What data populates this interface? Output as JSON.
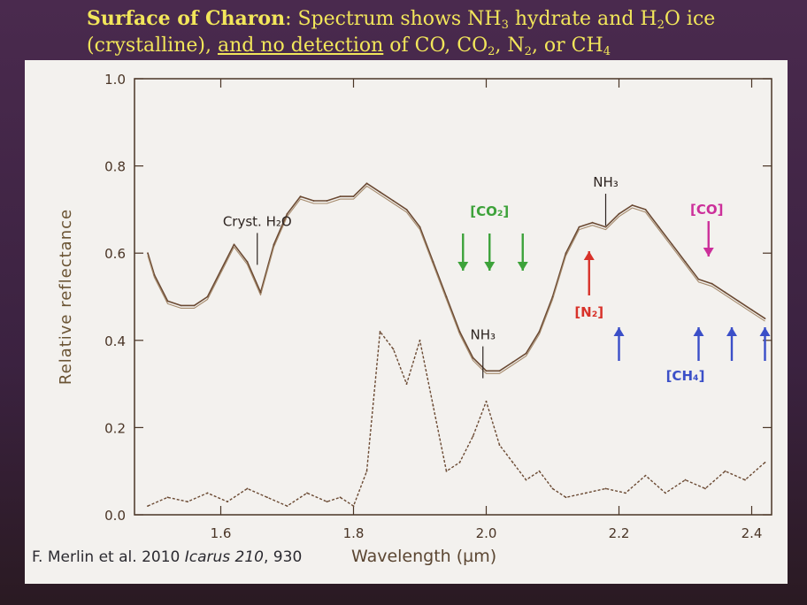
{
  "slide": {
    "title_bold": "Surface of Charon",
    "title_rest_1": ": Spectrum shows NH",
    "title_sub_1": "3",
    "title_rest_2": " hydrate and H",
    "title_sub_2": "2",
    "title_rest_3": "O ice",
    "title_line2_a": "(crystalline), ",
    "title_line2_u": "and no detection",
    "title_line2_b": " of CO, CO",
    "title_sub_3": "2",
    "title_line2_c": ", N",
    "title_sub_4": "2",
    "title_line2_d": ", or CH",
    "title_sub_5": "4",
    "credit_a": "F. Merlin et al. 2010 ",
    "credit_i": "Icarus 210",
    "credit_b": ", 930"
  },
  "colors": {
    "spectrum": "#6b4a33",
    "co2_arrows": "#3da23a",
    "n2_arrow": "#d8322a",
    "co_arrow": "#cc2f9a",
    "ch4_arrows": "#3b4fc8",
    "axis": "#4a3526"
  },
  "chart_data": {
    "type": "line",
    "xlabel": "Wavelength (µm)",
    "ylabel": "Relative reflectance",
    "xlim": [
      1.47,
      2.43
    ],
    "ylim": [
      0.0,
      1.0
    ],
    "xticks": [
      "1.6",
      "1.8",
      "2.0",
      "2.2",
      "2.4"
    ],
    "yticks": [
      "0.0",
      "0.2",
      "0.4",
      "0.6",
      "0.8",
      "1.0"
    ],
    "series": [
      {
        "style": "solid",
        "x": [
          1.49,
          1.5,
          1.52,
          1.54,
          1.56,
          1.58,
          1.6,
          1.62,
          1.64,
          1.66,
          1.68,
          1.7,
          1.72,
          1.74,
          1.76,
          1.78,
          1.8,
          1.82,
          1.84,
          1.86,
          1.88,
          1.9,
          1.92,
          1.94,
          1.96,
          1.98,
          2.0,
          2.02,
          2.04,
          2.06,
          2.08,
          2.1,
          2.12,
          2.14,
          2.16,
          2.18,
          2.2,
          2.22,
          2.24,
          2.26,
          2.28,
          2.3,
          2.32,
          2.34,
          2.36,
          2.38,
          2.4,
          2.42
        ],
        "y": [
          0.6,
          0.55,
          0.49,
          0.48,
          0.48,
          0.5,
          0.56,
          0.62,
          0.58,
          0.51,
          0.62,
          0.69,
          0.73,
          0.72,
          0.72,
          0.73,
          0.73,
          0.76,
          0.74,
          0.72,
          0.7,
          0.66,
          0.58,
          0.5,
          0.42,
          0.36,
          0.33,
          0.33,
          0.35,
          0.37,
          0.42,
          0.5,
          0.6,
          0.66,
          0.67,
          0.66,
          0.69,
          0.71,
          0.7,
          0.66,
          0.62,
          0.58,
          0.54,
          0.53,
          0.51,
          0.49,
          0.47,
          0.45
        ]
      },
      {
        "style": "dashed",
        "x": [
          1.49,
          1.52,
          1.55,
          1.58,
          1.61,
          1.64,
          1.67,
          1.7,
          1.73,
          1.76,
          1.78,
          1.8,
          1.82,
          1.84,
          1.86,
          1.88,
          1.9,
          1.92,
          1.94,
          1.96,
          1.98,
          2.0,
          2.02,
          2.04,
          2.06,
          2.08,
          2.1,
          2.12,
          2.15,
          2.18,
          2.21,
          2.24,
          2.27,
          2.3,
          2.33,
          2.36,
          2.39,
          2.42
        ],
        "y": [
          0.02,
          0.04,
          0.03,
          0.05,
          0.03,
          0.06,
          0.04,
          0.02,
          0.05,
          0.03,
          0.04,
          0.02,
          0.1,
          0.42,
          0.38,
          0.3,
          0.4,
          0.25,
          0.1,
          0.12,
          0.18,
          0.26,
          0.16,
          0.12,
          0.08,
          0.1,
          0.06,
          0.04,
          0.05,
          0.06,
          0.05,
          0.09,
          0.05,
          0.08,
          0.06,
          0.1,
          0.08,
          0.12
        ]
      }
    ],
    "annotations": [
      {
        "text": "Cryst. H₂O",
        "x": 1.655,
        "y": 0.63
      },
      {
        "text": "NH₃",
        "x": 2.18,
        "y": 0.72
      },
      {
        "text": "NH₃",
        "x": 1.995,
        "y": 0.37
      }
    ],
    "arrow_labels": [
      {
        "text": "[CO₂]",
        "color_key": "co2_arrows",
        "wavelengths": [
          1.965,
          2.005,
          2.055
        ],
        "direction": "down"
      },
      {
        "text": "[N₂]",
        "color_key": "n2_arrow",
        "wavelengths": [
          2.155
        ],
        "direction": "up"
      },
      {
        "text": "[CO]",
        "color_key": "co_arrow",
        "wavelengths": [
          2.335
        ],
        "direction": "down"
      },
      {
        "text": "[CH₄]",
        "color_key": "ch4_arrows",
        "wavelengths": [
          2.2,
          2.32,
          2.37,
          2.42
        ],
        "direction": "up"
      }
    ]
  }
}
